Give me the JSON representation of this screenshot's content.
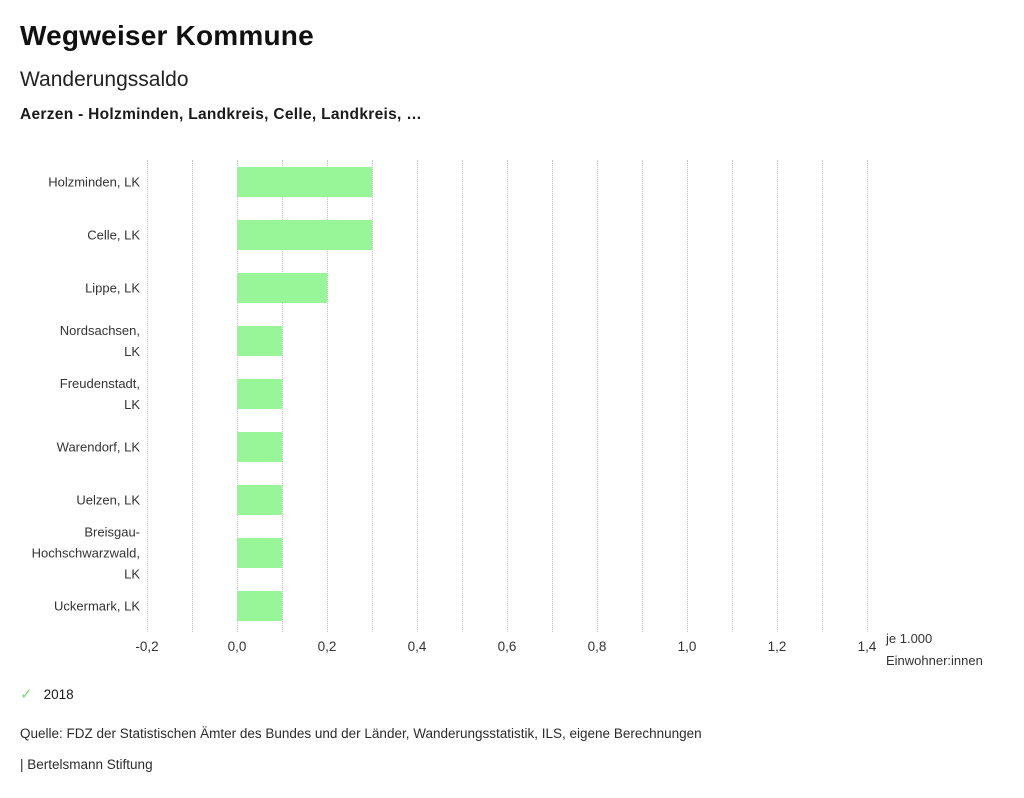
{
  "header": {
    "app_title": "Wegweiser Kommune",
    "chart_title": "Wanderungssaldo",
    "selection": "Aerzen - Holzminden, Landkreis, Celle, Landkreis, …"
  },
  "chart_data": {
    "type": "bar",
    "orientation": "horizontal",
    "title": "Wanderungssaldo",
    "categories": [
      "Holzminden, LK",
      "Celle, LK",
      "Lippe, LK",
      "Nordsachsen,\nLK",
      "Freudenstadt,\nLK",
      "Warendorf, LK",
      "Uelzen, LK",
      "Breisgau-\nHochschwarzwald,\nLK",
      "Uckermark, LK"
    ],
    "series": [
      {
        "name": "2018",
        "values": [
          0.3,
          0.3,
          0.2,
          0.1,
          0.1,
          0.1,
          0.1,
          0.1,
          0.1
        ]
      }
    ],
    "xlim": [
      -0.2,
      1.4
    ],
    "x_major_step": 0.2,
    "x_minor_step": 0.1,
    "xtick_labels": [
      "-0,2",
      "0,0",
      "0,2",
      "0,4",
      "0,6",
      "0,8",
      "1,0",
      "1,2",
      "1,4"
    ],
    "xlabel": "je 1.000\nEinwohner:innen",
    "ylabel": "",
    "grid": true,
    "legend_position": "bottom-left",
    "bar_color": "#98f598",
    "grid_color": "#c8c8c8"
  },
  "legend": {
    "check_icon": "✓",
    "check_color": "#7edc7e",
    "year_label": "2018"
  },
  "footer": {
    "source": "Quelle: FDZ der Statistischen Ämter des Bundes und der Länder, Wanderungsstatistik, ILS, eigene Berechnungen",
    "branding": "| Bertelsmann Stiftung"
  }
}
